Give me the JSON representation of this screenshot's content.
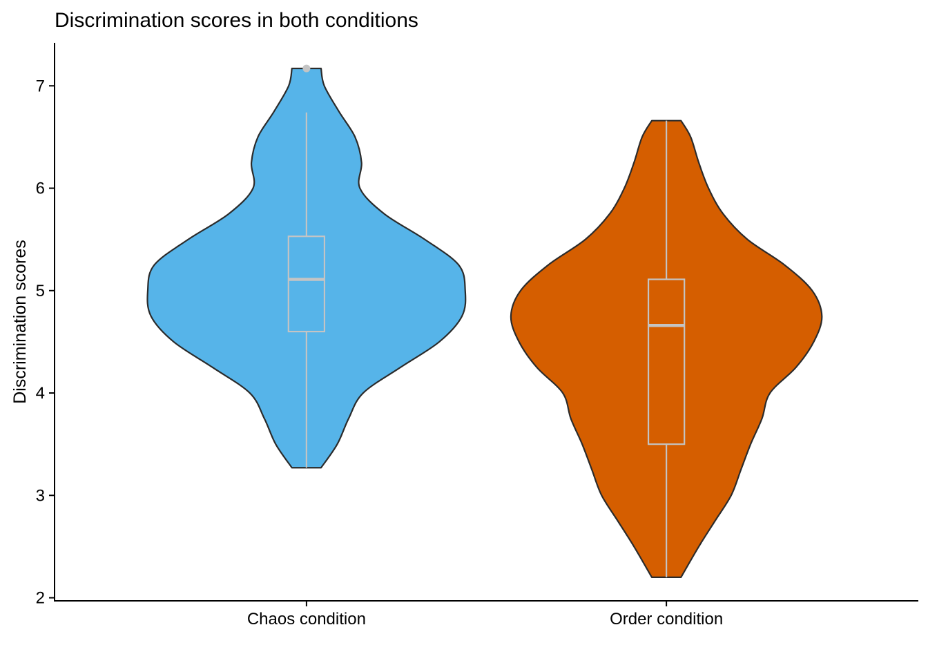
{
  "chart_data": {
    "type": "violin",
    "title": "Discrimination scores in both conditions",
    "xlabel": "",
    "ylabel": "Discrimination scores",
    "ylim": [
      1.97,
      7.42
    ],
    "yticks": [
      2,
      3,
      4,
      5,
      6,
      7
    ],
    "categories": [
      "Chaos condition",
      "Order condition"
    ],
    "grid": false,
    "legend": "none",
    "series": [
      {
        "category": "Chaos condition",
        "color": "#56B4E9",
        "min": 3.27,
        "max": 7.17,
        "box": {
          "q1": 4.6,
          "median": 5.11,
          "q3": 5.53,
          "whisker_low": 3.27,
          "whisker_high": 6.74
        },
        "outliers": [
          7.17
        ],
        "density": [
          [
            3.27,
            0.09
          ],
          [
            3.5,
            0.19
          ],
          [
            3.75,
            0.26
          ],
          [
            4.0,
            0.35
          ],
          [
            4.25,
            0.58
          ],
          [
            4.5,
            0.82
          ],
          [
            4.75,
            0.96
          ],
          [
            5.0,
            0.98
          ],
          [
            5.25,
            0.94
          ],
          [
            5.5,
            0.73
          ],
          [
            5.75,
            0.48
          ],
          [
            6.0,
            0.33
          ],
          [
            6.25,
            0.34
          ],
          [
            6.5,
            0.3
          ],
          [
            6.75,
            0.2
          ],
          [
            7.0,
            0.11
          ],
          [
            7.17,
            0.09
          ]
        ]
      },
      {
        "category": "Order condition",
        "color": "#D55E00",
        "min": 2.2,
        "max": 6.66,
        "box": {
          "q1": 3.5,
          "median": 4.66,
          "q3": 5.11,
          "whisker_low": 2.2,
          "whisker_high": 6.66
        },
        "outliers": [],
        "density": [
          [
            2.2,
            0.09
          ],
          [
            2.5,
            0.2
          ],
          [
            2.75,
            0.3
          ],
          [
            3.0,
            0.4
          ],
          [
            3.25,
            0.46
          ],
          [
            3.5,
            0.52
          ],
          [
            3.75,
            0.59
          ],
          [
            4.0,
            0.64
          ],
          [
            4.25,
            0.8
          ],
          [
            4.5,
            0.91
          ],
          [
            4.75,
            0.96
          ],
          [
            5.0,
            0.9
          ],
          [
            5.25,
            0.73
          ],
          [
            5.5,
            0.5
          ],
          [
            5.75,
            0.35
          ],
          [
            6.0,
            0.26
          ],
          [
            6.25,
            0.2
          ],
          [
            6.5,
            0.15
          ],
          [
            6.66,
            0.09
          ]
        ]
      }
    ]
  }
}
